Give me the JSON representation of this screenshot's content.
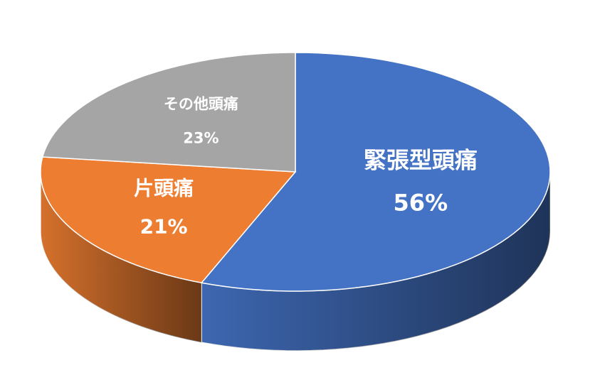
{
  "chart_data": {
    "type": "pie3d",
    "categories": [
      "緊張型頭痛",
      "片頭痛",
      "その他頭痛"
    ],
    "values": [
      56,
      21,
      23
    ],
    "value_labels": [
      "56%",
      "21%",
      "23%"
    ],
    "colors": [
      "#4472c4",
      "#ed7d31",
      "#a5a5a5"
    ]
  }
}
